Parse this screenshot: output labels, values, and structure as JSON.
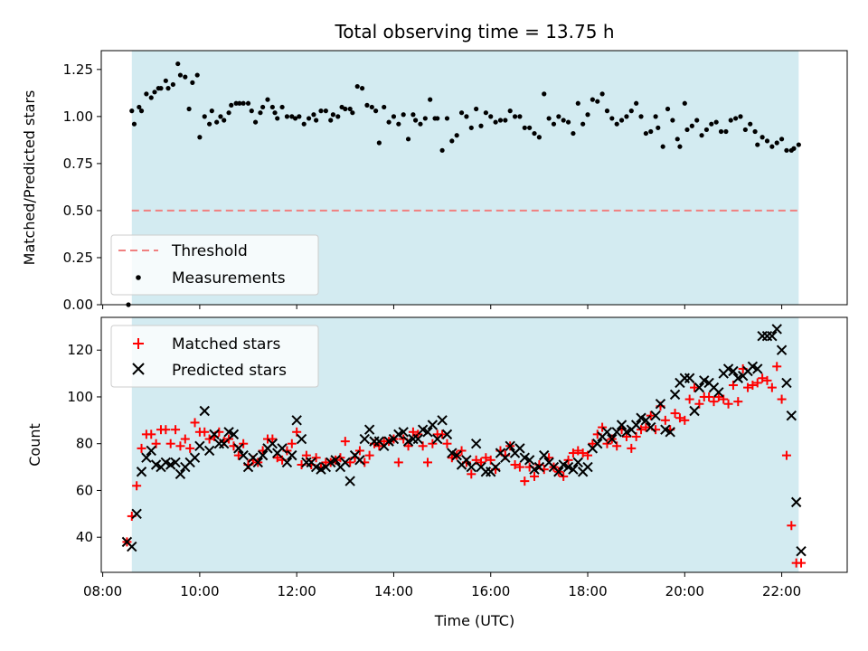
{
  "chart_data": {
    "title": "Total observing time = 13.75 h",
    "xlabel": "Time (UTC)",
    "x_unit": "hours UTC",
    "xlim": [
      7.97,
      23.35
    ],
    "x_ticks": [
      8,
      10,
      12,
      14,
      16,
      18,
      20,
      22
    ],
    "x_tick_labels": [
      "08:00",
      "10:00",
      "12:00",
      "14:00",
      "16:00",
      "18:00",
      "20:00",
      "22:00"
    ],
    "observing_window": [
      8.6,
      22.35
    ],
    "window_color": "#d3ebf1",
    "panels": [
      {
        "type": "scatter",
        "ylabel": "Matched/Predicted stars",
        "ylim": [
          0,
          1.35
        ],
        "y_ticks": [
          0.0,
          0.25,
          0.5,
          0.75,
          1.0,
          1.25
        ],
        "y_tick_labels": [
          "0.00",
          "0.25",
          "0.50",
          "0.75",
          "1.00",
          "1.25"
        ],
        "threshold": {
          "name": "Threshold",
          "value": 0.5,
          "color": "#f08080"
        },
        "legend": {
          "position": "lower-left",
          "entries": [
            "Threshold",
            "Measurements"
          ]
        },
        "series": [
          {
            "name": "Measurements",
            "color": "#000000",
            "x": [
              8.53,
              8.6,
              8.65,
              8.75,
              8.8,
              8.9,
              9.0,
              9.07,
              9.15,
              9.2,
              9.3,
              9.35,
              9.45,
              9.55,
              9.6,
              9.7,
              9.78,
              9.85,
              9.95,
              10.0,
              10.1,
              10.2,
              10.25,
              10.35,
              10.43,
              10.5,
              10.6,
              10.65,
              10.75,
              10.82,
              10.9,
              11.0,
              11.07,
              11.15,
              11.25,
              11.3,
              11.4,
              11.5,
              11.55,
              11.6,
              11.7,
              11.8,
              11.9,
              11.97,
              12.05,
              12.15,
              12.25,
              12.35,
              12.4,
              12.5,
              12.6,
              12.7,
              12.75,
              12.85,
              12.93,
              13.0,
              13.1,
              13.15,
              13.25,
              13.35,
              13.45,
              13.55,
              13.63,
              13.7,
              13.8,
              13.9,
              14.0,
              14.1,
              14.2,
              14.3,
              14.4,
              14.45,
              14.55,
              14.65,
              14.75,
              14.85,
              14.9,
              15.0,
              15.1,
              15.2,
              15.3,
              15.4,
              15.5,
              15.6,
              15.7,
              15.8,
              15.9,
              16.0,
              16.1,
              16.2,
              16.3,
              16.4,
              16.5,
              16.6,
              16.7,
              16.8,
              16.9,
              17.0,
              17.1,
              17.2,
              17.3,
              17.4,
              17.5,
              17.6,
              17.7,
              17.8,
              17.9,
              18.0,
              18.1,
              18.2,
              18.3,
              18.4,
              18.5,
              18.6,
              18.7,
              18.8,
              18.9,
              19.0,
              19.1,
              19.2,
              19.3,
              19.4,
              19.45,
              19.55,
              19.65,
              19.75,
              19.85,
              19.9,
              20.0,
              20.05,
              20.15,
              20.25,
              20.35,
              20.45,
              20.55,
              20.65,
              20.75,
              20.85,
              20.95,
              21.05,
              21.15,
              21.25,
              21.35,
              21.45,
              21.5,
              21.6,
              21.7,
              21.8,
              21.9,
              22.0,
              22.1,
              22.2,
              22.25,
              22.35
            ],
            "y": [
              0.0,
              1.03,
              0.96,
              1.05,
              1.03,
              1.12,
              1.1,
              1.13,
              1.15,
              1.15,
              1.19,
              1.15,
              1.17,
              1.28,
              1.22,
              1.21,
              1.04,
              1.18,
              1.22,
              0.89,
              1.0,
              0.96,
              1.03,
              0.97,
              1.0,
              0.98,
              1.02,
              1.06,
              1.07,
              1.07,
              1.07,
              1.07,
              1.03,
              0.97,
              1.02,
              1.05,
              1.09,
              1.05,
              1.02,
              0.99,
              1.05,
              1.0,
              1.0,
              0.99,
              1.0,
              0.96,
              0.99,
              1.01,
              0.98,
              1.03,
              1.03,
              0.98,
              1.01,
              1.0,
              1.05,
              1.04,
              1.04,
              1.02,
              1.16,
              1.15,
              1.06,
              1.05,
              1.03,
              0.86,
              1.05,
              0.97,
              1.0,
              0.96,
              1.01,
              0.88,
              1.01,
              0.98,
              0.96,
              0.99,
              1.09,
              0.99,
              0.99,
              0.82,
              0.99,
              0.87,
              0.9,
              1.02,
              1.0,
              0.94,
              1.04,
              0.95,
              1.02,
              1.0,
              0.97,
              0.98,
              0.98,
              1.03,
              1.0,
              1.0,
              0.94,
              0.94,
              0.91,
              0.89,
              1.12,
              0.99,
              0.96,
              1.0,
              0.98,
              0.97,
              0.91,
              1.07,
              0.96,
              1.01,
              1.09,
              1.08,
              1.12,
              1.03,
              0.99,
              0.96,
              0.98,
              1.0,
              1.03,
              1.07,
              1.0,
              0.91,
              0.92,
              1.0,
              0.94,
              0.84,
              1.04,
              0.98,
              0.88,
              0.84,
              1.07,
              0.93,
              0.95,
              0.98,
              0.9,
              0.93,
              0.96,
              0.97,
              0.92,
              0.92,
              0.98,
              0.99,
              1.0,
              0.93,
              0.96,
              0.92,
              0.85,
              0.89,
              0.87,
              0.84,
              0.86,
              0.88,
              0.82,
              0.82,
              0.83,
              0.85
            ]
          }
        ]
      },
      {
        "type": "scatter",
        "ylabel": "Count",
        "ylim": [
          25,
          134
        ],
        "y_ticks": [
          40,
          60,
          80,
          100,
          120
        ],
        "y_tick_labels": [
          "40",
          "60",
          "80",
          "100",
          "120"
        ],
        "legend": {
          "position": "upper-left",
          "entries": [
            "Matched stars",
            "Predicted stars"
          ]
        },
        "x": [
          8.5,
          8.6,
          8.7,
          8.8,
          8.9,
          9.0,
          9.1,
          9.2,
          9.3,
          9.4,
          9.5,
          9.6,
          9.7,
          9.8,
          9.9,
          10.0,
          10.1,
          10.2,
          10.3,
          10.4,
          10.5,
          10.6,
          10.7,
          10.8,
          10.9,
          11.0,
          11.1,
          11.2,
          11.3,
          11.4,
          11.5,
          11.6,
          11.7,
          11.8,
          11.9,
          12.0,
          12.1,
          12.2,
          12.3,
          12.4,
          12.5,
          12.6,
          12.7,
          12.8,
          12.9,
          13.0,
          13.1,
          13.2,
          13.3,
          13.4,
          13.5,
          13.6,
          13.7,
          13.8,
          13.9,
          14.0,
          14.1,
          14.2,
          14.3,
          14.4,
          14.5,
          14.6,
          14.7,
          14.8,
          14.9,
          15.0,
          15.1,
          15.2,
          15.3,
          15.4,
          15.5,
          15.6,
          15.7,
          15.8,
          15.9,
          16.0,
          16.1,
          16.2,
          16.3,
          16.4,
          16.5,
          16.6,
          16.7,
          16.8,
          16.9,
          17.0,
          17.1,
          17.2,
          17.3,
          17.4,
          17.5,
          17.6,
          17.7,
          17.8,
          17.9,
          18.0,
          18.1,
          18.2,
          18.3,
          18.4,
          18.5,
          18.6,
          18.7,
          18.8,
          18.9,
          19.0,
          19.1,
          19.2,
          19.3,
          19.4,
          19.5,
          19.6,
          19.7,
          19.8,
          19.9,
          20.0,
          20.1,
          20.2,
          20.3,
          20.4,
          20.5,
          20.6,
          20.7,
          20.8,
          20.9,
          21.0,
          21.1,
          21.2,
          21.3,
          21.4,
          21.5,
          21.6,
          21.7,
          21.8,
          21.9,
          22.0,
          22.1,
          22.2,
          22.3,
          22.4
        ],
        "series": [
          {
            "name": "Matched stars",
            "marker": "plus",
            "color": "#ff0000",
            "y": [
              38,
              49,
              62,
              78,
              84,
              84,
              80,
              86,
              86,
              80,
              86,
              79,
              82,
              78,
              89,
              85,
              85,
              82,
              83,
              85,
              81,
              82,
              79,
              75,
              80,
              71,
              73,
              72,
              77,
              82,
              82,
              74,
              73,
              77,
              80,
              85,
              71,
              75,
              71,
              74,
              70,
              72,
              72,
              73,
              74,
              81,
              72,
              74,
              77,
              72,
              75,
              80,
              79,
              81,
              81,
              82,
              72,
              82,
              79,
              85,
              84,
              79,
              72,
              80,
              84,
              84,
              80,
              74,
              75,
              77,
              72,
              67,
              73,
              72,
              74,
              73,
              69,
              77,
              75,
              79,
              71,
              70,
              64,
              70,
              66,
              71,
              69,
              74,
              70,
              68,
              66,
              73,
              76,
              77,
              76,
              75,
              80,
              84,
              87,
              80,
              82,
              79,
              86,
              83,
              78,
              83,
              86,
              87,
              92,
              86,
              96,
              90,
              86,
              93,
              91,
              90,
              99,
              104,
              97,
              100,
              100,
              98,
              100,
              99,
              97,
              105,
              98,
              112,
              104,
              105,
              106,
              108,
              107,
              104,
              113,
              99,
              75,
              45,
              29,
              29
            ]
          },
          {
            "name": "Predicted stars",
            "marker": "x",
            "color": "#000000",
            "y": [
              38,
              36,
              50,
              68,
              74,
              77,
              71,
              70,
              72,
              71,
              72,
              67,
              70,
              72,
              74,
              79,
              94,
              77,
              84,
              80,
              80,
              85,
              84,
              78,
              75,
              70,
              74,
              72,
              75,
              78,
              80,
              76,
              78,
              72,
              75,
              90,
              82,
              72,
              72,
              70,
              69,
              70,
              72,
              73,
              70,
              72,
              64,
              75,
              73,
              82,
              86,
              81,
              81,
              79,
              81,
              82,
              84,
              85,
              81,
              82,
              82,
              86,
              85,
              88,
              82,
              90,
              84,
              76,
              75,
              71,
              73,
              70,
              80,
              70,
              68,
              68,
              70,
              76,
              74,
              79,
              76,
              78,
              74,
              73,
              69,
              70,
              75,
              72,
              70,
              68,
              71,
              70,
              69,
              72,
              68,
              70,
              78,
              80,
              83,
              85,
              82,
              85,
              88,
              85,
              86,
              88,
              91,
              90,
              87,
              92,
              97,
              86,
              85,
              101,
              106,
              108,
              108,
              94,
              104,
              107,
              106,
              104,
              102,
              110,
              112,
              111,
              108,
              109,
              111,
              113,
              112,
              126,
              126,
              126,
              129,
              120,
              106,
              92,
              55,
              34
            ]
          }
        ]
      }
    ]
  }
}
